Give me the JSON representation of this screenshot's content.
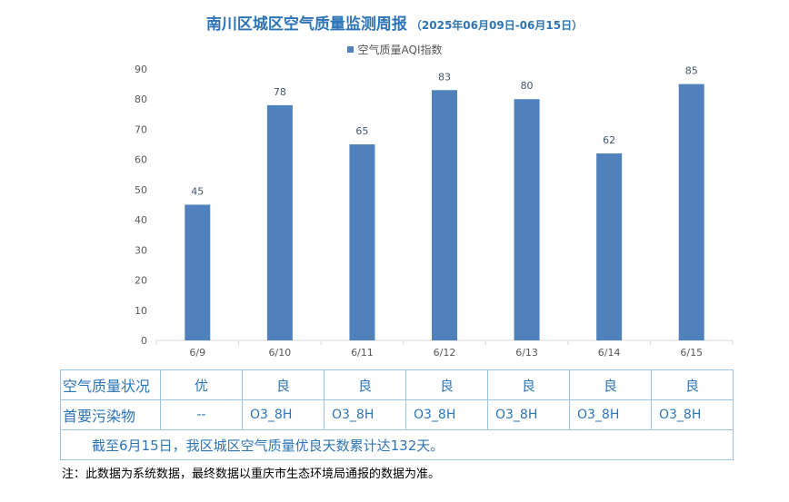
{
  "title": {
    "main": "南川区城区空气质量监测周报",
    "range": "（2025年06月09日-06月15日）"
  },
  "legend": {
    "label": "空气质量AQI指数"
  },
  "colors": {
    "bar": "#4f81bd",
    "title": "#2e75b6",
    "table_text": "#2e75b6",
    "table_border": "#9dc3e6"
  },
  "chart_data": {
    "type": "bar",
    "categories": [
      "6/9",
      "6/10",
      "6/11",
      "6/12",
      "6/13",
      "6/14",
      "6/15"
    ],
    "series": [
      {
        "name": "空气质量AQI指数",
        "values": [
          45,
          78,
          65,
          83,
          80,
          62,
          85
        ]
      }
    ],
    "yticks": [
      "0",
      "10",
      "20",
      "30",
      "40",
      "50",
      "60",
      "70",
      "80",
      "90"
    ],
    "ylim": [
      0,
      90
    ],
    "grid": false,
    "legend_position": "top",
    "data_labels": true
  },
  "table": {
    "row1_label": "空气质量状况",
    "row1_values": [
      "优",
      "良",
      "良",
      "良",
      "良",
      "良",
      "良"
    ],
    "row2_label": "首要污染物",
    "row2_values": [
      "--",
      "O3_8H",
      "O3_8H",
      "O3_8H",
      "O3_8H",
      "O3_8H",
      "O3_8H"
    ],
    "summary": "截至6月15日，我区城区空气质量优良天数累计达132天。"
  },
  "note": "注：此数据为系统数据，最终数据以重庆市生态环境局通报的数据为准。"
}
